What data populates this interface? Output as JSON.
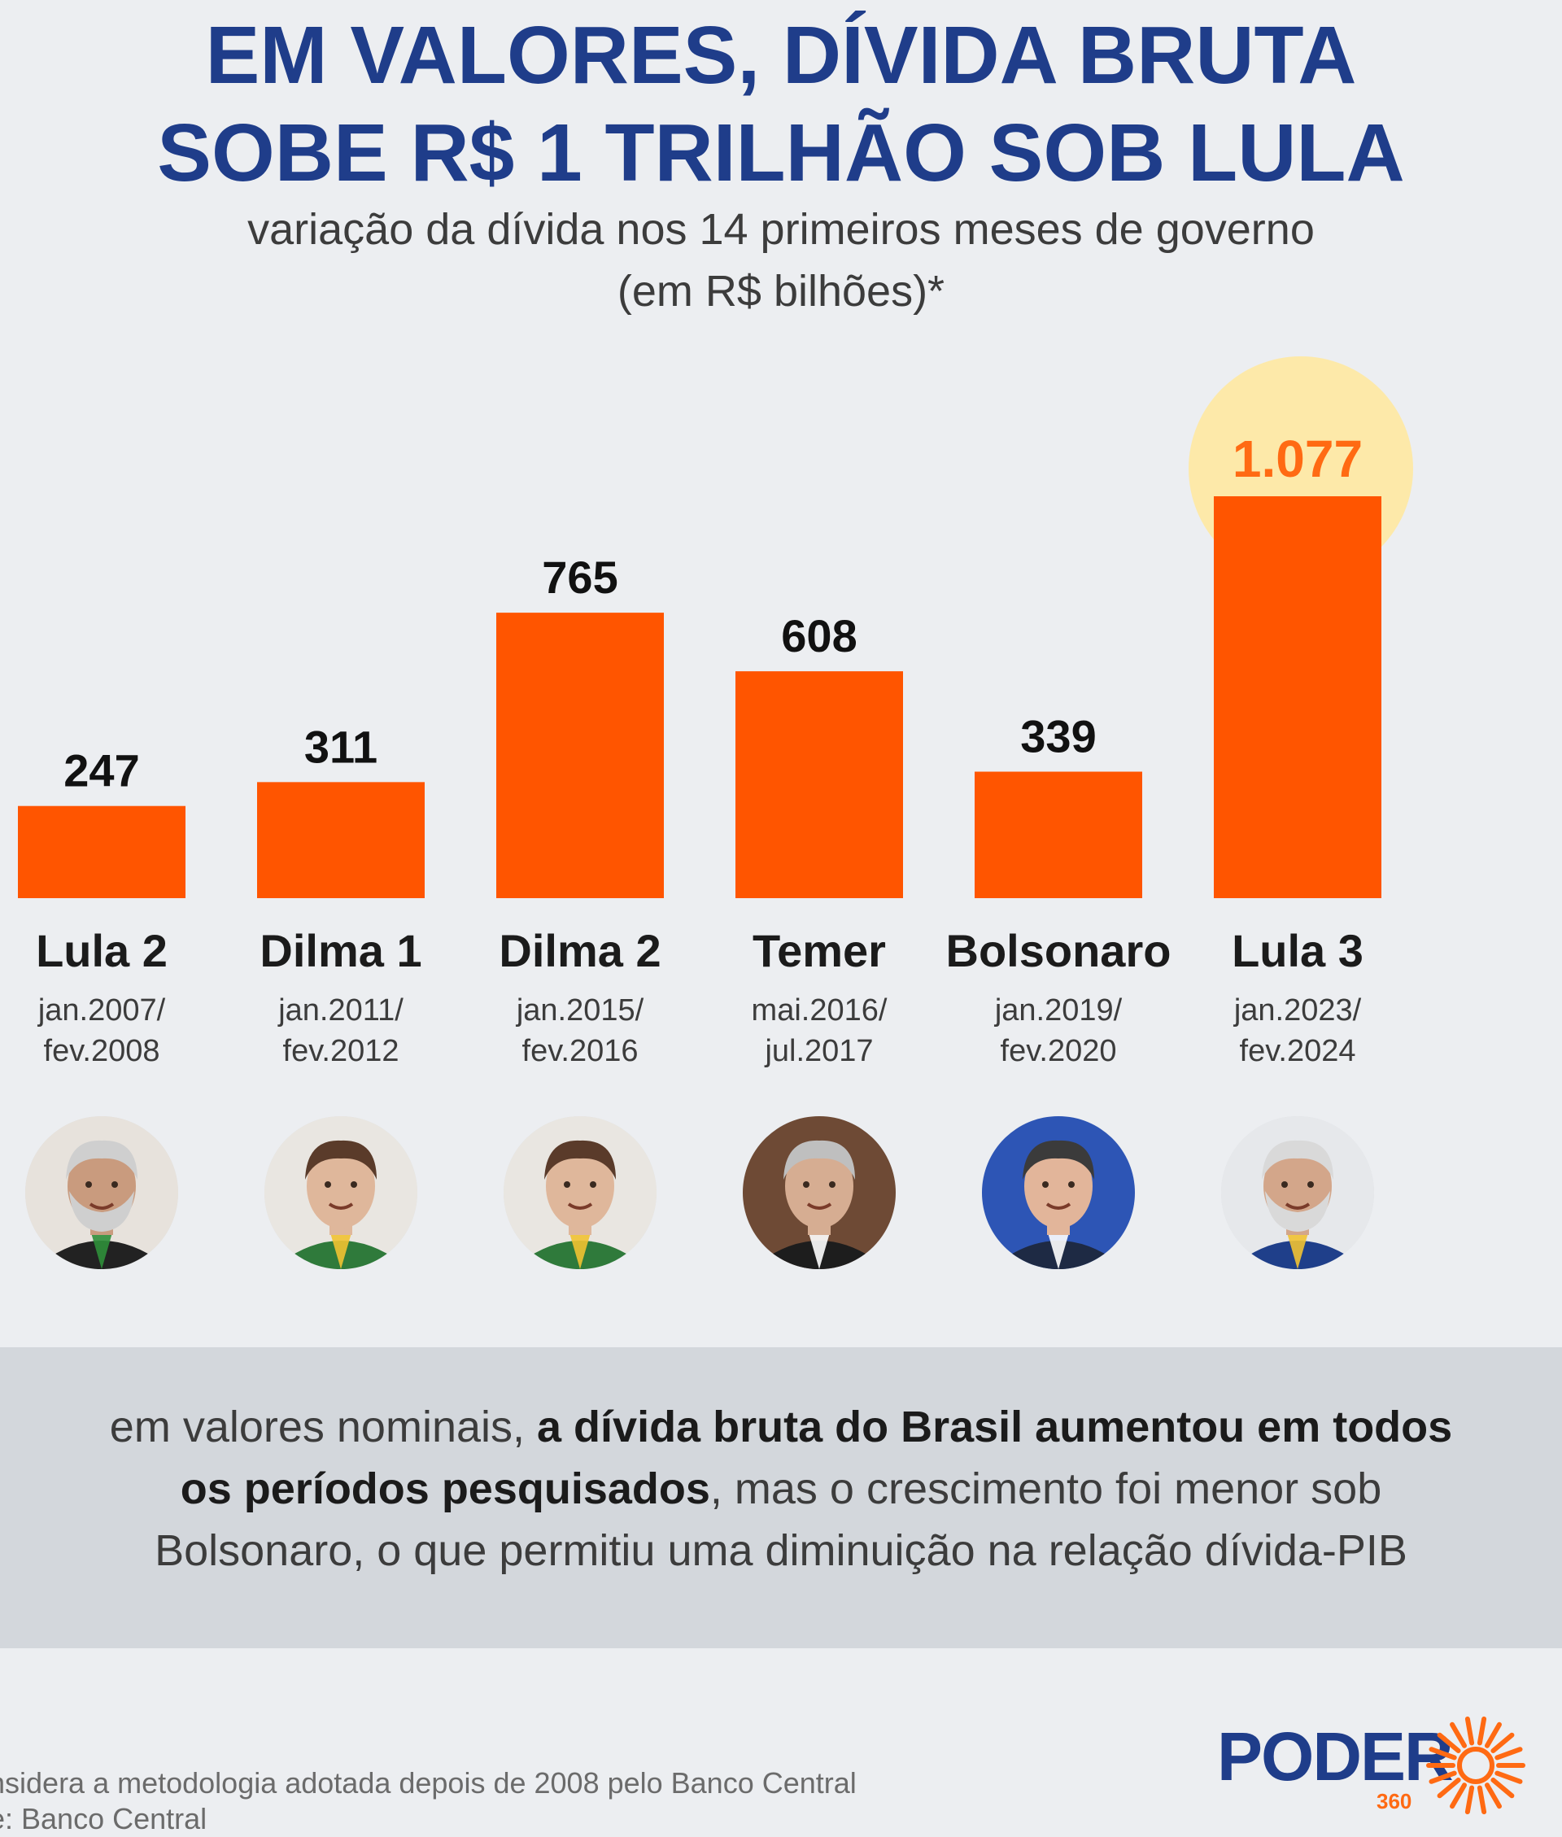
{
  "title": {
    "line1": "EM VALORES, DÍVIDA BRUTA",
    "line2": "SOBE R$ 1 TRILHÃO SOB LULA"
  },
  "subtitle": {
    "line1": "variação da dívida nos 14 primeiros meses de governo",
    "line2": "(em R$ bilhões)*"
  },
  "chart_data": {
    "type": "bar",
    "categories": [
      "Lula 2",
      "Dilma 1",
      "Dilma 2",
      "Temer",
      "Bolsonaro",
      "Lula 3"
    ],
    "periods": [
      [
        "jan.2007/",
        "fev.2008"
      ],
      [
        "jan.2011/",
        "fev.2012"
      ],
      [
        "jan.2015/",
        "fev.2016"
      ],
      [
        "mai.2016/",
        "jul.2017"
      ],
      [
        "jan.2019/",
        "fev.2020"
      ],
      [
        "jan.2023/",
        "fev.2024"
      ]
    ],
    "values": [
      247,
      311,
      765,
      608,
      339,
      1077
    ],
    "value_labels": [
      "247",
      "311",
      "765",
      "608",
      "339",
      "1.077"
    ],
    "highlight_index": 5,
    "bar_color": "#ff5500",
    "highlight_label_color": "#ff6a13",
    "highlight_circle_color": "#fde9a9",
    "ylim": [
      0,
      1077
    ],
    "grid": false,
    "legend": "none",
    "unit": "R$ bilhões"
  },
  "portraits": [
    {
      "name": "Lula 2",
      "icon": "portrait-lula-icon",
      "skin": "#c99b7e",
      "hair": "#cfcfcf",
      "suit": "#222222",
      "bg": "#e7e2dc",
      "beard": true,
      "sash": "#2f8f3a"
    },
    {
      "name": "Dilma 1",
      "icon": "portrait-dilma-icon",
      "skin": "#dfb79b",
      "hair": "#5a3b2a",
      "suit": "#2f7a3b",
      "bg": "#e9e6e1",
      "beard": false,
      "sash": "#f1c232"
    },
    {
      "name": "Dilma 2",
      "icon": "portrait-dilma-icon",
      "skin": "#dfb79b",
      "hair": "#5a3b2a",
      "suit": "#2f7a3b",
      "bg": "#e9e6e1",
      "beard": false,
      "sash": "#f1c232"
    },
    {
      "name": "Temer",
      "icon": "portrait-temer-icon",
      "skin": "#d6ad92",
      "hair": "#bfbfbf",
      "suit": "#1d1d1d",
      "bg": "#6e4a35",
      "beard": false,
      "sash": "#ffffff"
    },
    {
      "name": "Bolsonaro",
      "icon": "portrait-bolsonaro-icon",
      "skin": "#e2b59a",
      "hair": "#3b3b3b",
      "suit": "#1e2a44",
      "bg": "#2d55b5",
      "beard": false,
      "sash": "#ffffff"
    },
    {
      "name": "Lula 3",
      "icon": "portrait-lula-icon",
      "skin": "#d3a68a",
      "hair": "#d9d9d9",
      "suit": "#1f3f8a",
      "bg": "#e6e8eb",
      "beard": true,
      "sash": "#f1c232"
    }
  ],
  "note": {
    "part1": "em valores nominais, ",
    "bold1": "a dívida bruta do Brasil aumentou em todos",
    "bold2": "os períodos pesquisados",
    "part2": ", mas o crescimento foi menor sob",
    "line3": "Bolsonaro, o que permitiu uma diminuição na relação dívida-PIB"
  },
  "footnote": {
    "line1": "nsidera a metodologia adotada depois de 2008 pelo Banco Central",
    "line2": "e: Banco Central"
  },
  "logo": {
    "word": "PODER",
    "sub": "360",
    "accent": "#ff6a13",
    "primary": "#1f3d8a"
  }
}
